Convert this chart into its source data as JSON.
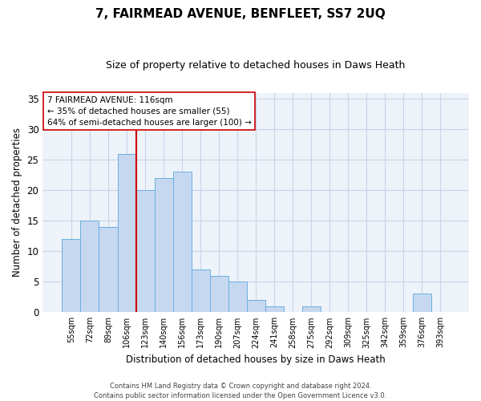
{
  "title": "7, FAIRMEAD AVENUE, BENFLEET, SS7 2UQ",
  "subtitle": "Size of property relative to detached houses in Daws Heath",
  "xlabel": "Distribution of detached houses by size in Daws Heath",
  "ylabel": "Number of detached properties",
  "bar_labels": [
    "55sqm",
    "72sqm",
    "89sqm",
    "106sqm",
    "123sqm",
    "140sqm",
    "156sqm",
    "173sqm",
    "190sqm",
    "207sqm",
    "224sqm",
    "241sqm",
    "258sqm",
    "275sqm",
    "292sqm",
    "309sqm",
    "325sqm",
    "342sqm",
    "359sqm",
    "376sqm",
    "393sqm"
  ],
  "bar_values": [
    12,
    15,
    14,
    26,
    20,
    22,
    23,
    7,
    6,
    5,
    2,
    1,
    0,
    1,
    0,
    0,
    0,
    0,
    0,
    3,
    0
  ],
  "bar_color": "#c5d8f0",
  "bar_edgecolor": "#6aaee0",
  "red_line_x": 3.5,
  "red_line_color": "#cc0000",
  "ylim": [
    0,
    36
  ],
  "yticks": [
    0,
    5,
    10,
    15,
    20,
    25,
    30,
    35
  ],
  "annotation_title": "7 FAIRMEAD AVENUE: 116sqm",
  "annotation_line1": "← 35% of detached houses are smaller (55)",
  "annotation_line2": "64% of semi-detached houses are larger (100) →",
  "annotation_box_color": "#ffffff",
  "annotation_box_edgecolor": "#cc0000",
  "footer_line1": "Contains HM Land Registry data © Crown copyright and database right 2024.",
  "footer_line2": "Contains public sector information licensed under the Open Government Licence v3.0.",
  "background_color": "#eef3fa",
  "plot_bg_color": "#eef3fa",
  "grid_color": "#c8d4e8"
}
